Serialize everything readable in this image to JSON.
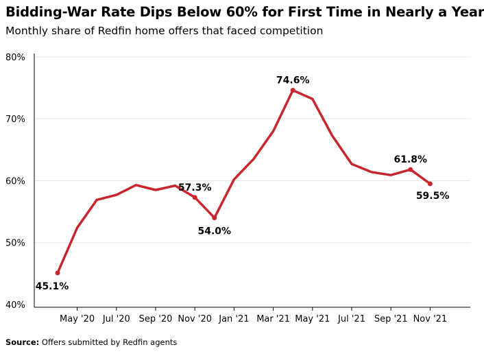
{
  "title": "Bidding-War Rate Dips Below 60% for First Time in Nearly a Year",
  "subtitle": "Monthly share of Redfin home offers that faced competition",
  "source": {
    "label": "Source:",
    "text": " Offers submitted by Redfin agents"
  },
  "colors": {
    "line": "#c9252c",
    "axis": "#000000",
    "grid": "#e6e6e6"
  },
  "chart_data": {
    "type": "line",
    "title": "Bidding-War Rate Dips Below 60% for First Time in Nearly a Year",
    "subtitle": "Monthly share of Redfin home offers that faced competition",
    "xlabel": "",
    "ylabel": "",
    "x": [
      "Apr '20",
      "May '20",
      "Jun '20",
      "Jul '20",
      "Aug '20",
      "Sep '20",
      "Oct '20",
      "Nov '20",
      "Dec '20",
      "Jan '21",
      "Feb '21",
      "Mar '21",
      "Apr '21",
      "May '21",
      "Jun '21",
      "Jul '21",
      "Aug '21",
      "Sep '21",
      "Oct '21",
      "Nov '21"
    ],
    "series": [
      {
        "name": "",
        "values": [
          45.1,
          52.4,
          56.9,
          57.7,
          59.3,
          58.5,
          59.2,
          57.3,
          54.0,
          60.2,
          63.5,
          68.0,
          74.6,
          73.2,
          67.3,
          62.7,
          61.4,
          60.9,
          61.8,
          59.5
        ]
      }
    ],
    "ylim": [
      40,
      80
    ],
    "yticks": [
      40,
      50,
      60,
      70,
      80
    ],
    "ytick_labels": [
      "40%",
      "50%",
      "60%",
      "70%",
      "80%"
    ],
    "xtick_labels": [
      {
        "index": 1,
        "label": "May '20"
      },
      {
        "index": 3,
        "label": "Jul '20"
      },
      {
        "index": 5,
        "label": "Sep '20"
      },
      {
        "index": 7,
        "label": "Nov '20"
      },
      {
        "index": 9,
        "label": "Jan '21"
      },
      {
        "index": 11,
        "label": "Mar '21"
      },
      {
        "index": 13,
        "label": "May '21"
      },
      {
        "index": 15,
        "label": "Jul '21"
      },
      {
        "index": 17,
        "label": "Sep '21"
      },
      {
        "index": 19,
        "label": "Nov '21"
      }
    ],
    "data_labels": [
      {
        "index": 0,
        "text": "45.1%",
        "position": "below"
      },
      {
        "index": 7,
        "text": "57.3%",
        "position": "above"
      },
      {
        "index": 8,
        "text": "54.0%",
        "position": "below"
      },
      {
        "index": 12,
        "text": "74.6%",
        "position": "above"
      },
      {
        "index": 18,
        "text": "61.8%",
        "position": "above"
      },
      {
        "index": 19,
        "text": "59.5%",
        "position": "below"
      }
    ],
    "markers": [
      0,
      7,
      8,
      12,
      18,
      19
    ],
    "grid": true,
    "legend": "none"
  }
}
